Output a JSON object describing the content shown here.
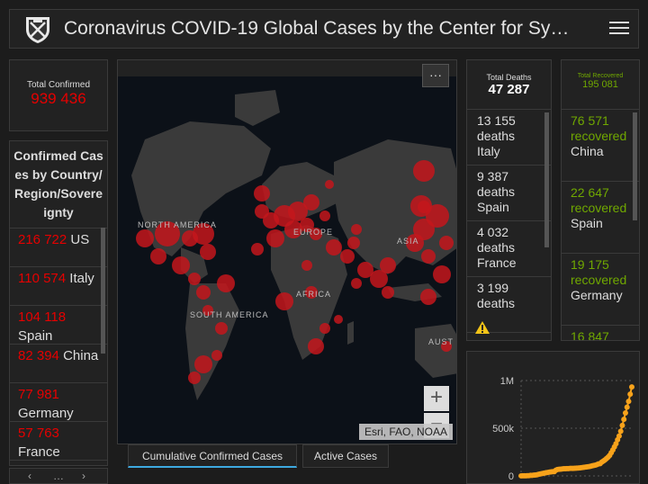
{
  "header": {
    "title": "Coronavirus COVID-19 Global Cases by the Center for Sy…"
  },
  "total_confirmed": {
    "label": "Total Confirmed",
    "value": "939 436"
  },
  "country_list": {
    "title": "Confirmed Cases by Country/Region/Sovereignty",
    "rows": [
      {
        "count": "216 722",
        "name": "US"
      },
      {
        "count": "110 574",
        "name": "Italy"
      },
      {
        "count": "104 118",
        "name": "Spain"
      },
      {
        "count": "82 394",
        "name": "China"
      },
      {
        "count": "77 981",
        "name": "Germany"
      },
      {
        "count": "57 763",
        "name": "France"
      }
    ],
    "pager": {
      "prev": "‹",
      "dots": "…",
      "next": "›"
    }
  },
  "map": {
    "more_label": "···",
    "labels": {
      "north_america": "NORTH AMERICA",
      "south_america": "SOUTH AMERICA",
      "europe": "EUROPE",
      "africa": "AFRICA",
      "asia": "ASIA",
      "australia": "AUST"
    },
    "zoom_in": "+",
    "zoom_out": "−",
    "attribution": "Esri, FAO, NOAA"
  },
  "tabs": {
    "cumulative": "Cumulative Confirmed Cases",
    "active": "Active Cases"
  },
  "deaths": {
    "label": "Total Deaths",
    "value": "47 287",
    "rows": [
      {
        "count": "13 155",
        "suffix": "deaths",
        "country": "Italy"
      },
      {
        "count": "9 387",
        "suffix": "deaths",
        "country": "Spain"
      },
      {
        "count": "4 032",
        "suffix": "deaths",
        "country": "France"
      },
      {
        "count": "3 199",
        "suffix": "deaths",
        "country": ""
      }
    ]
  },
  "recovered": {
    "label": "Total Recovered",
    "value": "195 081",
    "rows": [
      {
        "count": "76 571",
        "suffix": "recovered",
        "country": "China"
      },
      {
        "count": "22 647",
        "suffix": "recovered",
        "country": "Spain"
      },
      {
        "count": "19 175",
        "suffix": "recovered",
        "country": "Germany"
      },
      {
        "count": "16 847",
        "suffix": "",
        "country": ""
      }
    ]
  },
  "colors": {
    "confirmed": "#e60000",
    "recovered": "#70a800",
    "chart_line": "#f7a21b",
    "tab_accent": "#3da9e0"
  },
  "chart_data": {
    "type": "line",
    "title": "",
    "xlabel": "",
    "ylabel": "",
    "y_ticks": [
      "0",
      "500k",
      "1M"
    ],
    "ylim": [
      0,
      1000000
    ],
    "series": [
      {
        "values": [
          555,
          654,
          941,
          1434,
          2118,
          2927,
          5578,
          6166,
          8234,
          9927,
          12038,
          16787,
          19881,
          23892,
          27635,
          30794,
          34391,
          37120,
          40150,
          42762,
          44802,
          45221,
          60368,
          66885,
          69030,
          71224,
          73258,
          75136,
          75639,
          76197,
          76819,
          78572,
          78958,
          79561,
          80406,
          81388,
          82746,
          84112,
          86011,
          88369,
          90306,
          92840,
          95120,
          97886,
          101801,
          105847,
          109821,
          113590,
          118620,
          125875,
          128352,
          145205,
          156101,
          167454,
          181574,
          197102,
          214821,
          242570,
          272208,
          304507,
          336953,
          378235,
          418045,
          467653,
          529591,
          593291,
          660706,
          720117,
          782365,
          857487,
          932605
        ]
      }
    ]
  }
}
